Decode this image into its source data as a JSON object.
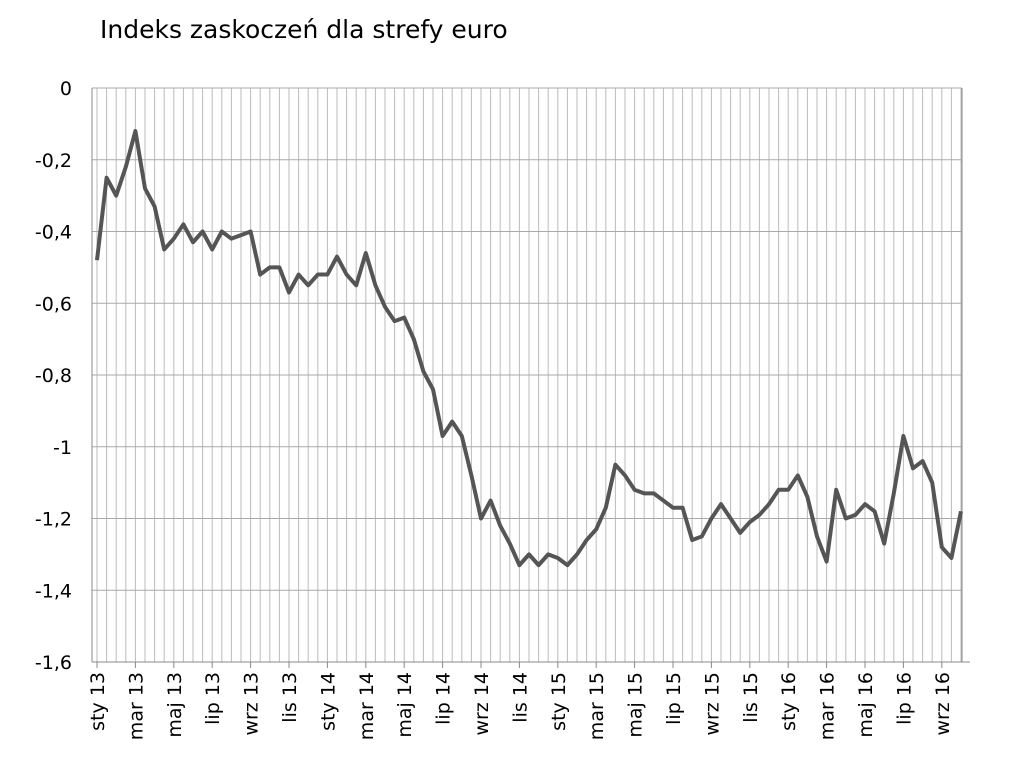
{
  "chart_data": {
    "type": "line",
    "title": "Indeks zaskoczeń dla strefy euro",
    "categories": [
      "sty 13",
      null,
      null,
      null,
      "mar 13",
      null,
      null,
      null,
      "maj 13",
      null,
      null,
      null,
      "lip 13",
      null,
      null,
      null,
      "wrz 13",
      null,
      null,
      null,
      "lis 13",
      null,
      null,
      null,
      "sty 14",
      null,
      null,
      null,
      "mar 14",
      null,
      null,
      null,
      "maj 14",
      null,
      null,
      null,
      "lip 14",
      null,
      null,
      null,
      "wrz 14",
      null,
      null,
      null,
      "lis 14",
      null,
      null,
      null,
      "sty 15",
      null,
      null,
      null,
      "mar 15",
      null,
      null,
      null,
      "maj 15",
      null,
      null,
      null,
      "lip 15",
      null,
      null,
      null,
      "wrz 15",
      null,
      null,
      null,
      "lis 15",
      null,
      null,
      null,
      "sty 16",
      null,
      null,
      null,
      "mar 16",
      null,
      null,
      null,
      "maj 16",
      null,
      null,
      null,
      "lip 16",
      null,
      null,
      null,
      "wrz 16",
      null,
      null
    ],
    "series": [
      {
        "color": "#555555",
        "values": [
          -0.48,
          -0.25,
          -0.3,
          -0.22,
          -0.12,
          -0.28,
          -0.33,
          -0.45,
          -0.42,
          -0.38,
          -0.43,
          -0.4,
          -0.45,
          -0.4,
          -0.42,
          -0.41,
          -0.4,
          -0.52,
          -0.5,
          -0.5,
          -0.57,
          -0.52,
          -0.55,
          -0.52,
          -0.52,
          -0.47,
          -0.52,
          -0.55,
          -0.46,
          -0.55,
          -0.61,
          -0.65,
          -0.64,
          -0.7,
          -0.79,
          -0.84,
          -0.97,
          -0.93,
          -0.97,
          -1.08,
          -1.2,
          -1.15,
          -1.22,
          -1.27,
          -1.33,
          -1.3,
          -1.33,
          -1.3,
          -1.31,
          -1.33,
          -1.3,
          -1.26,
          -1.23,
          -1.17,
          -1.05,
          -1.08,
          -1.12,
          -1.13,
          -1.13,
          -1.15,
          -1.17,
          -1.17,
          -1.26,
          -1.25,
          -1.2,
          -1.16,
          -1.2,
          -1.24,
          -1.21,
          -1.19,
          -1.16,
          -1.12,
          -1.12,
          -1.08,
          -1.14,
          -1.25,
          -1.32,
          -1.12,
          -1.2,
          -1.19,
          -1.16,
          -1.18,
          -1.27,
          -1.13,
          -0.97,
          -1.06,
          -1.04,
          -1.1,
          -1.28,
          -1.31,
          -1.18
        ]
      }
    ],
    "ylim": [
      -1.6,
      0
    ],
    "yticks": [
      {
        "value": -1.6,
        "label": "-1,6"
      },
      {
        "value": -1.4,
        "label": "-1,4"
      },
      {
        "value": -1.2,
        "label": "-1,2"
      },
      -1,
      {
        "value": -0.8,
        "label": "-0,8"
      },
      {
        "value": -0.6,
        "label": "-0,6"
      },
      {
        "value": -0.4,
        "label": "-0,4"
      },
      {
        "value": -0.2,
        "label": "-0,2"
      },
      0
    ],
    "grid": true
  }
}
